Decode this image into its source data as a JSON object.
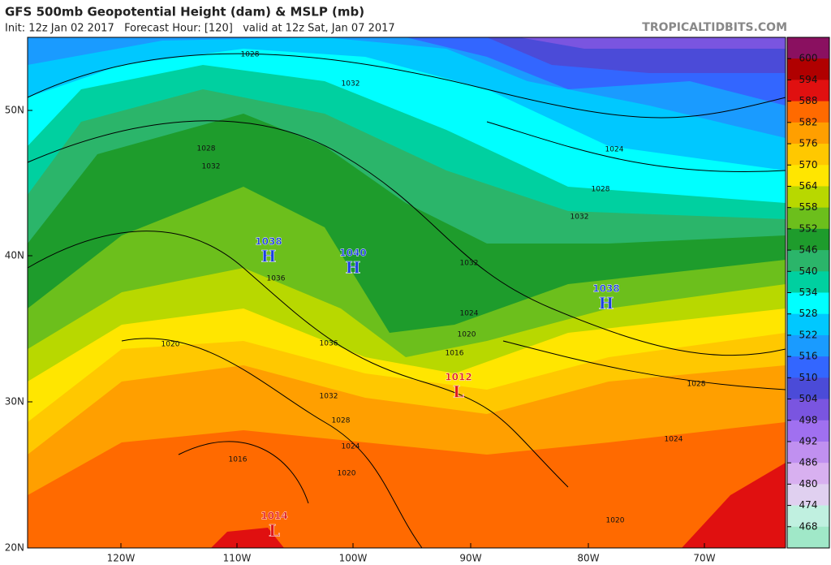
{
  "header": {
    "title": "GFS 500mb Geopotential Height (dam) & MSLP (mb)",
    "subtitle": "Init: 12z Jan 02 2017   Forecast Hour: [120]   valid at 12z Sat, Jan 07 2017",
    "credit": "TROPICALTIDBITS.COM"
  },
  "map": {
    "lat_labels": [
      "50N",
      "40N",
      "30N",
      "20N"
    ],
    "lon_labels": [
      "120W",
      "110W",
      "100W",
      "90W",
      "80W",
      "70W"
    ],
    "centers": [
      {
        "type": "H",
        "pressure": "1038"
      },
      {
        "type": "H",
        "pressure": "1040"
      },
      {
        "type": "H",
        "pressure": "1038"
      },
      {
        "type": "L",
        "pressure": "1012"
      },
      {
        "type": "L",
        "pressure": "1014"
      }
    ],
    "contour_labels": [
      "1028",
      "1032",
      "1028",
      "1032",
      "1036",
      "1032",
      "1024",
      "1020",
      "1016",
      "1020",
      "1036",
      "1032",
      "1028",
      "1024",
      "1020",
      "1016",
      "1028",
      "1032",
      "1024",
      "1028",
      "1024",
      "1020"
    ]
  },
  "colorbar": {
    "labels": [
      "600",
      "594",
      "588",
      "582",
      "576",
      "570",
      "564",
      "558",
      "552",
      "546",
      "540",
      "534",
      "528",
      "522",
      "516",
      "510",
      "504",
      "498",
      "492",
      "486",
      "480",
      "474",
      "468"
    ]
  }
}
